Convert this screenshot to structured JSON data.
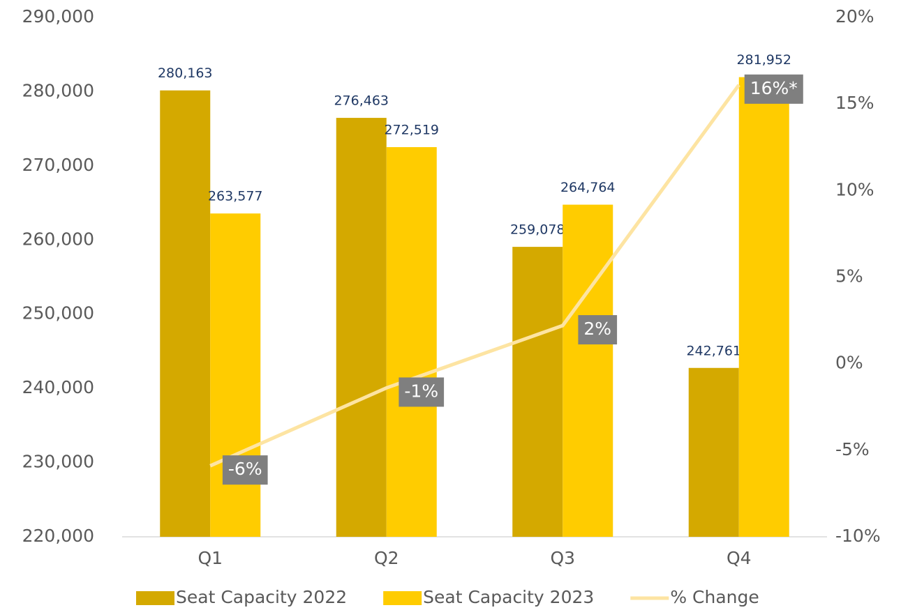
{
  "chart_data": {
    "type": "bar",
    "categories": [
      "Q1",
      "Q2",
      "Q3",
      "Q4"
    ],
    "series": [
      {
        "name": "Seat Capacity 2022",
        "color": "#d4a900",
        "values": [
          280163,
          276463,
          259078,
          242761
        ],
        "value_labels": [
          "280,163",
          "276,463",
          "259,078",
          "242,761"
        ]
      },
      {
        "name": "Seat Capacity 2023",
        "color": "#ffcc00",
        "values": [
          263577,
          272519,
          264764,
          281952
        ],
        "value_labels": [
          "263,577",
          "272,519",
          "264,764",
          "281,952"
        ]
      },
      {
        "name": "% Change",
        "type": "line",
        "axis": "y2",
        "color": "#fde4a2",
        "values": [
          -5.9,
          -1.4,
          2.2,
          16.1
        ],
        "value_labels": [
          "-6%",
          "-1%",
          "2%",
          "16%*"
        ]
      }
    ],
    "ylim": [
      220000,
      290000
    ],
    "yticks": [
      {
        "value": 220000,
        "label": "220,000"
      },
      {
        "value": 230000,
        "label": "230,000"
      },
      {
        "value": 240000,
        "label": "240,000"
      },
      {
        "value": 250000,
        "label": "250,000"
      },
      {
        "value": 260000,
        "label": "260,000"
      },
      {
        "value": 270000,
        "label": "270,000"
      },
      {
        "value": 280000,
        "label": "280,000"
      },
      {
        "value": 290000,
        "label": "290,000"
      }
    ],
    "y2lim": [
      -10,
      20
    ],
    "y2ticks": [
      {
        "value": -10,
        "label": "-10%"
      },
      {
        "value": -5,
        "label": "-5%"
      },
      {
        "value": 0,
        "label": "0%"
      },
      {
        "value": 5,
        "label": "5%"
      },
      {
        "value": 10,
        "label": "10%"
      },
      {
        "value": 15,
        "label": "15%"
      },
      {
        "value": 20,
        "label": "20%"
      }
    ],
    "legend": "bottom"
  }
}
